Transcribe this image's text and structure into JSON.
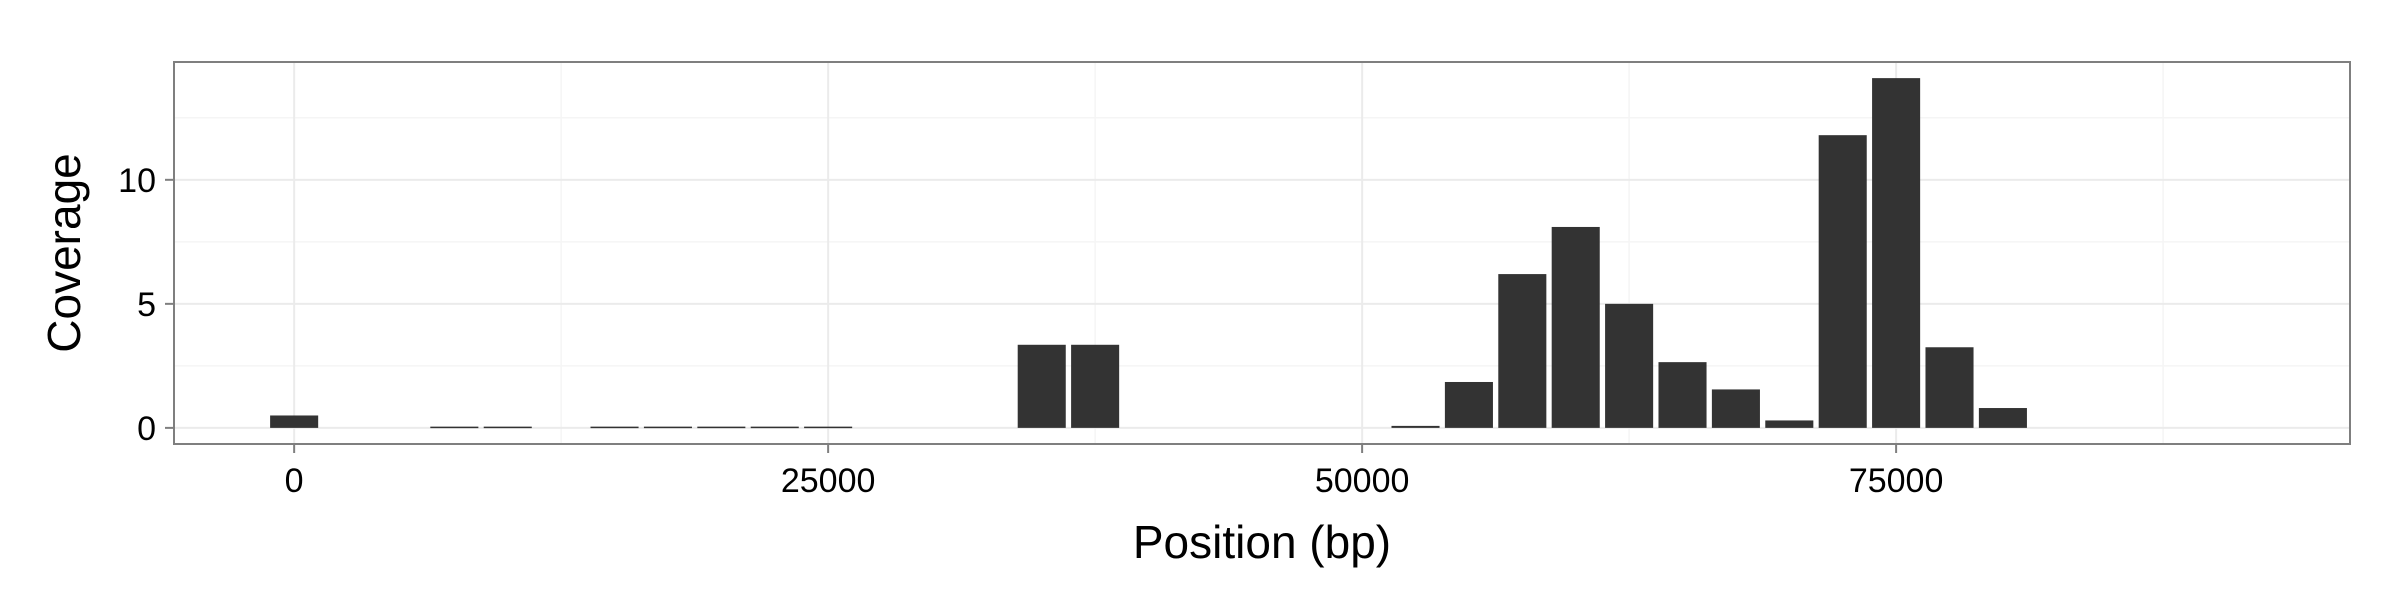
{
  "chart_data": {
    "type": "bar",
    "title": "",
    "xlabel": "Position (bp)",
    "ylabel": "Coverage",
    "xlim": [
      -5625,
      96250
    ],
    "ylim": [
      -0.65,
      14.75
    ],
    "xticks": [
      0,
      25000,
      50000,
      75000
    ],
    "yticks": [
      0,
      5,
      10
    ],
    "grid": true,
    "legend": "none",
    "bin_width": 2500,
    "x": [
      0,
      7500,
      10000,
      15000,
      17500,
      20000,
      22500,
      25000,
      35000,
      37500,
      52500,
      55000,
      57500,
      60000,
      62500,
      65000,
      67500,
      70000,
      72500,
      75000,
      77500,
      80000
    ],
    "values": [
      0.5,
      0.05,
      0.05,
      0.05,
      0.05,
      0.05,
      0.05,
      0.05,
      3.35,
      3.35,
      0.08,
      1.85,
      6.2,
      8.1,
      5.0,
      2.65,
      1.55,
      0.3,
      11.8,
      14.1,
      3.25,
      0.8
    ],
    "colors": {
      "bar": "#333333",
      "panel_border": "#7f7f7f",
      "grid_major": "#ebebeb",
      "grid_minor": "#f5f5f5",
      "tick": "#7f7f7f"
    }
  }
}
